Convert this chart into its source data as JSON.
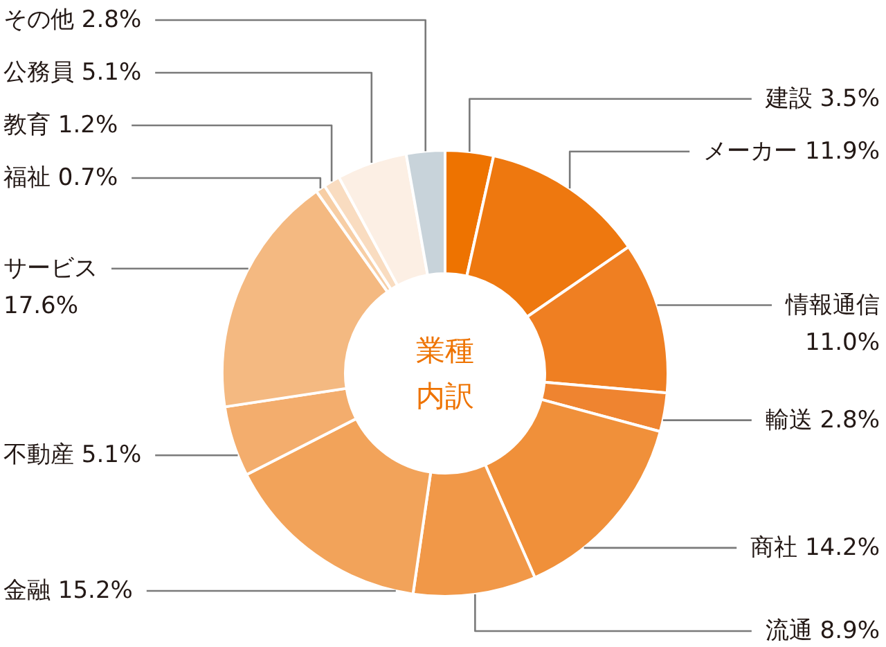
{
  "chart_data": {
    "type": "donut",
    "title": "業種内訳",
    "categories": [
      "建設",
      "メーカー",
      "情報通信",
      "輸送",
      "商社",
      "流通",
      "金融",
      "不動産",
      "サービス",
      "福祉",
      "教育",
      "公務員",
      "その他"
    ],
    "values": [
      3.5,
      11.9,
      11.0,
      2.8,
      14.2,
      8.9,
      15.2,
      5.1,
      17.6,
      0.7,
      1.2,
      5.1,
      2.8
    ],
    "value_labels": [
      "3.5%",
      "11.9%",
      "11.0%",
      "2.8%",
      "14.2%",
      "8.9%",
      "15.2%",
      "5.1%",
      "17.6%",
      "0.7%",
      "1.2%",
      "5.1%",
      "2.8%"
    ],
    "colors": [
      "#ee7300",
      "#ee780f",
      "#ef7f22",
      "#ef8430",
      "#f0903a",
      "#f19848",
      "#f2a35a",
      "#f3ad6d",
      "#f4b981",
      "#f7cea5",
      "#f9dcc0",
      "#fcefe4",
      "#c8d3da"
    ]
  }
}
